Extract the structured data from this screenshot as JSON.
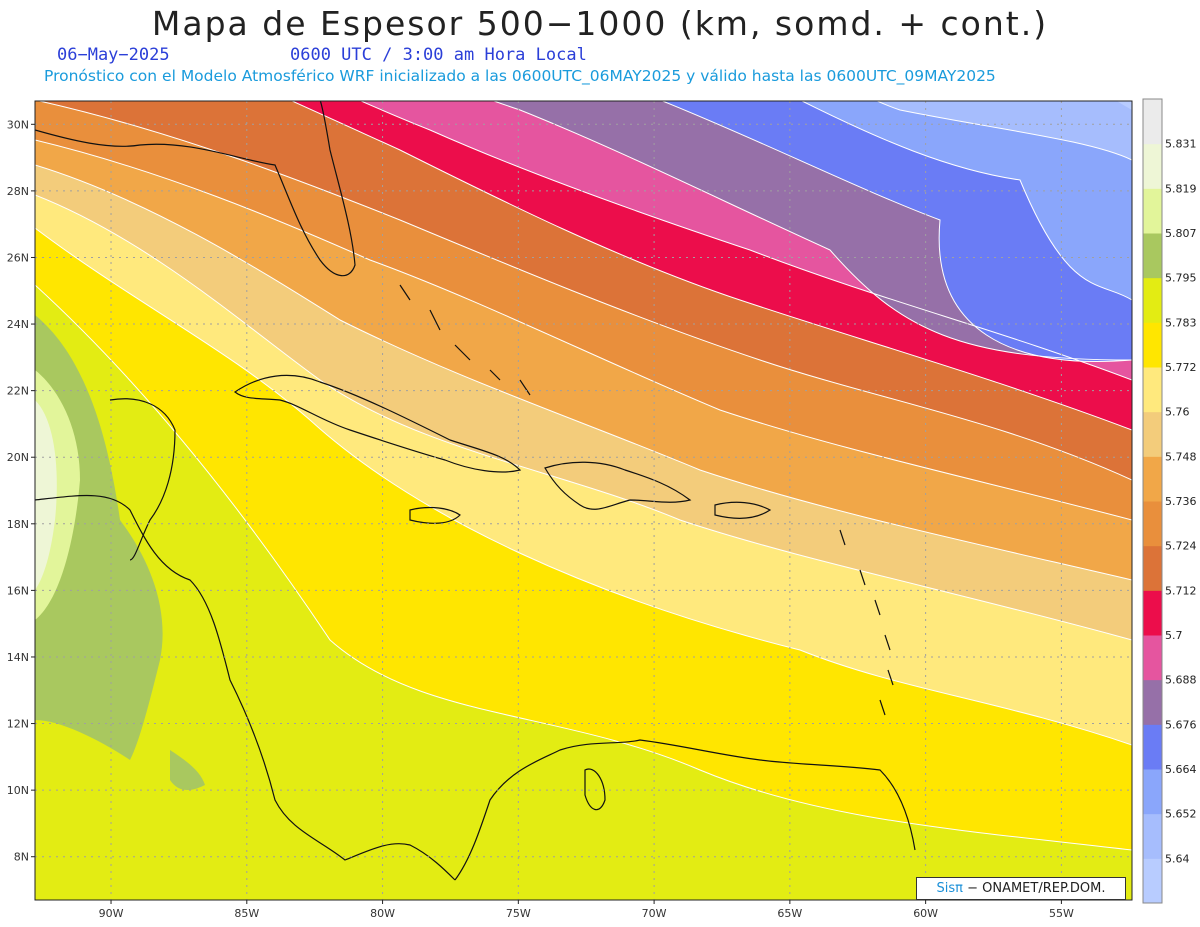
{
  "title": "Mapa de Espesor 500−1000 (km, somd. + cont.)",
  "date": "06−May−2025",
  "time": "0600 UTC / 3:00 am Hora Local",
  "subtitle": "Pronóstico con el Modelo Atmosférico WRF inicializado a las 0600UTC_06MAY2025 y válido hasta las  0600UTC_09MAY2025",
  "credit": {
    "brand": "Sisπ",
    "text": " − ONAMET/REP.DOM."
  },
  "map": {
    "lon_range": [
      -92.8,
      -52.4
    ],
    "lat_range": [
      6.7,
      30.7
    ],
    "lat_labels": [
      {
        "lat": 8,
        "label": "8N"
      },
      {
        "lat": 10,
        "label": "10N"
      },
      {
        "lat": 12,
        "label": "12N"
      },
      {
        "lat": 14,
        "label": "14N"
      },
      {
        "lat": 16,
        "label": "16N"
      },
      {
        "lat": 18,
        "label": "18N"
      },
      {
        "lat": 20,
        "label": "20N"
      },
      {
        "lat": 22,
        "label": "22N"
      },
      {
        "lat": 24,
        "label": "24N"
      },
      {
        "lat": 26,
        "label": "26N"
      },
      {
        "lat": 28,
        "label": "28N"
      },
      {
        "lat": 30,
        "label": "30N"
      }
    ],
    "lon_labels": [
      {
        "lon": -90,
        "label": "90W"
      },
      {
        "lon": -85,
        "label": "85W"
      },
      {
        "lon": -80,
        "label": "80W"
      },
      {
        "lon": -75,
        "label": "75W"
      },
      {
        "lon": -70,
        "label": "70W"
      },
      {
        "lon": -65,
        "label": "65W"
      },
      {
        "lon": -60,
        "label": "60W"
      },
      {
        "lon": -55,
        "label": "55W"
      }
    ]
  },
  "colorbar": [
    {
      "label": "",
      "color": "#b8ccff"
    },
    {
      "label": "5.64",
      "color": "#a6bdfd"
    },
    {
      "label": "5.652",
      "color": "#8aa6fb"
    },
    {
      "label": "5.664",
      "color": "#6a7cf5"
    },
    {
      "label": "5.676",
      "color": "#9670a8"
    },
    {
      "label": "5.688",
      "color": "#e5559f"
    },
    {
      "label": "5.7",
      "color": "#ec0d4b"
    },
    {
      "label": "5.712",
      "color": "#dc7338"
    },
    {
      "label": "5.724",
      "color": "#e98f3c"
    },
    {
      "label": "5.736",
      "color": "#f1a748"
    },
    {
      "label": "5.748",
      "color": "#f3cc7b"
    },
    {
      "label": "5.76",
      "color": "#ffe97d"
    },
    {
      "label": "5.772",
      "color": "#ffe600"
    },
    {
      "label": "5.783",
      "color": "#e3ec13"
    },
    {
      "label": "5.795",
      "color": "#a9c85f"
    },
    {
      "label": "5.807",
      "color": "#e2f59a"
    },
    {
      "label": "5.819",
      "color": "#eef6d6"
    },
    {
      "label": "5.831",
      "color": "#ebebeb"
    }
  ]
}
